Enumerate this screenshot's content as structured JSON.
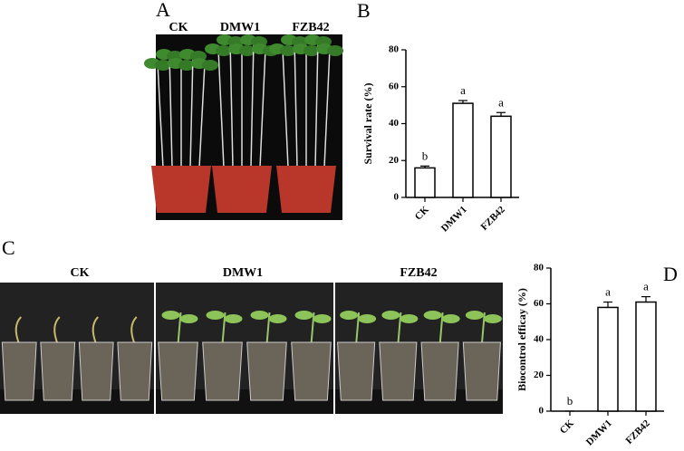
{
  "panel_labels": [
    "A",
    "B",
    "C",
    "D"
  ],
  "photo_labels": {
    "A": [
      "CK",
      "DMW1",
      "FZB42"
    ],
    "C": [
      "CK",
      "DMW1",
      "FZB42"
    ]
  },
  "chart_data": [
    {
      "type": "bar",
      "y_label": "Survival rate (%)",
      "categories": [
        "CK",
        "DMW1",
        "FZB42"
      ],
      "values": [
        16,
        51,
        44
      ],
      "errors": [
        1,
        1.5,
        2
      ],
      "annotations": [
        "b",
        "a",
        "a"
      ],
      "color": "#ffffff",
      "ylim": [
        0,
        80
      ],
      "yticks": [
        0,
        20,
        40,
        60,
        80
      ]
    },
    {
      "type": "bar",
      "y_label": "Biocontrol efficay (%)",
      "categories": [
        "CK",
        "DMW1",
        "FZB42"
      ],
      "values": [
        0,
        58,
        61
      ],
      "errors": [
        0,
        3,
        3
      ],
      "annotations": [
        "b",
        "a",
        "a"
      ],
      "color": "#ffffff",
      "ylim": [
        0,
        80
      ],
      "yticks": [
        0,
        20,
        40,
        60,
        80
      ]
    }
  ]
}
